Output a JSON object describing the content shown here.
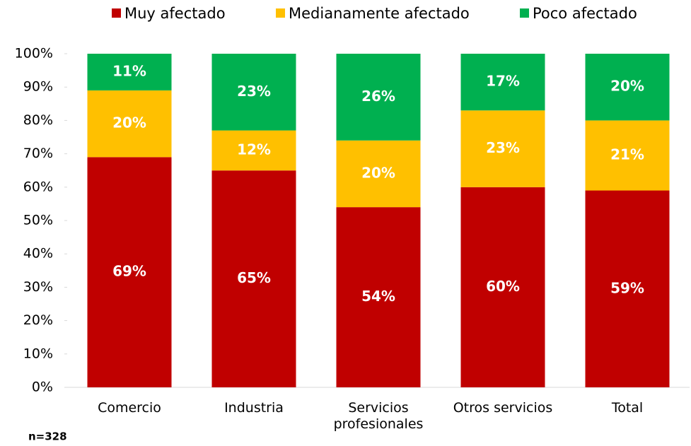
{
  "chart_data": {
    "type": "stacked_bar",
    "categories": [
      "Comercio",
      "Industria",
      "Servicios profesionales",
      "Otros servicios",
      "Total"
    ],
    "series": [
      {
        "name": "Muy afectado",
        "color": "#c00000",
        "values": [
          69,
          65,
          54,
          60,
          59
        ],
        "value_labels": [
          "69%",
          "65%",
          "54%",
          "60%",
          "59%"
        ]
      },
      {
        "name": "Medianamente afectado",
        "color": "#ffc000",
        "values": [
          20,
          12,
          20,
          23,
          21
        ],
        "value_labels": [
          "20%",
          "12%",
          "20%",
          "23%",
          "21%"
        ]
      },
      {
        "name": "Poco afectado",
        "color": "#00b050",
        "values": [
          11,
          23,
          26,
          17,
          20
        ],
        "value_labels": [
          "11%",
          "23%",
          "26%",
          "17%",
          "20%"
        ]
      }
    ],
    "ylim": [
      0,
      100
    ],
    "yticks": [
      {
        "value": 0,
        "label": "0%"
      },
      {
        "value": 10,
        "label": "10%"
      },
      {
        "value": 20,
        "label": "20%"
      },
      {
        "value": 30,
        "label": "30%"
      },
      {
        "value": 40,
        "label": "40%"
      },
      {
        "value": 50,
        "label": "50%"
      },
      {
        "value": 60,
        "label": "60%"
      },
      {
        "value": 70,
        "label": "70%"
      },
      {
        "value": 80,
        "label": "80%"
      },
      {
        "value": 90,
        "label": "90%"
      },
      {
        "value": 100,
        "label": "100%"
      }
    ],
    "legend": "top",
    "note": "n=328"
  }
}
